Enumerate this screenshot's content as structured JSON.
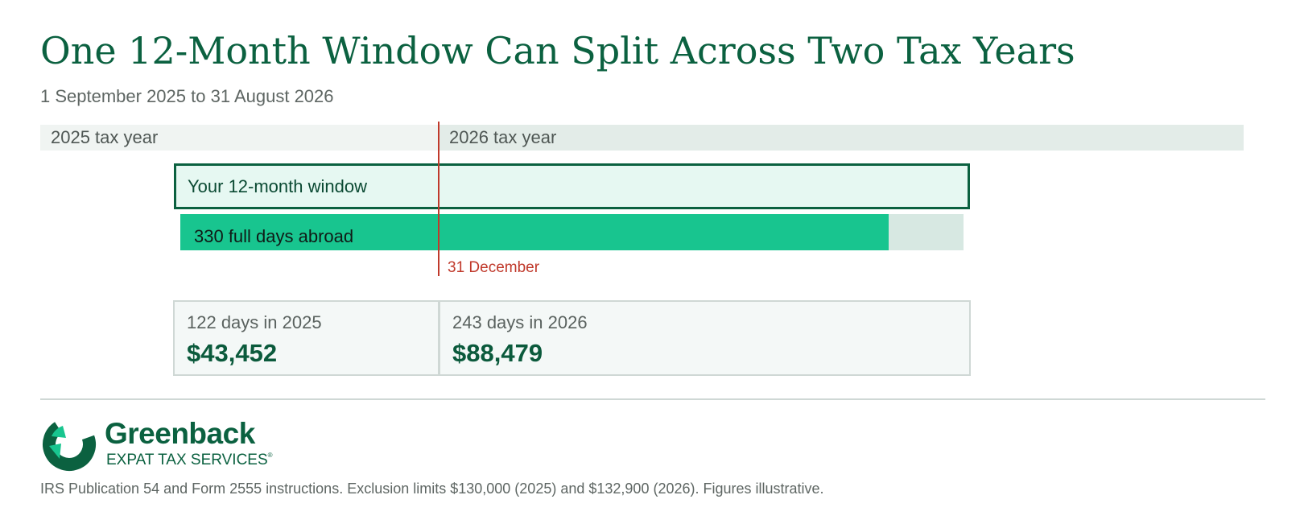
{
  "title": "One 12-Month Window Can Split Across Two Tax Years",
  "subtitle": "1 September 2025 to 31 August 2026",
  "tax_years": [
    {
      "label": "2025 tax year"
    },
    {
      "label": "2026 tax year"
    }
  ],
  "window": {
    "label": "Your 12-month window"
  },
  "abroad": {
    "label": "330 full days abroad",
    "days": 330,
    "total_days": 365
  },
  "divider": {
    "label": "31 December"
  },
  "splits": [
    {
      "days_label": "122 days in 2025",
      "amount": "$43,452"
    },
    {
      "days_label": "243 days in 2026",
      "amount": "$88,479"
    }
  ],
  "brand": {
    "name": "Greenback",
    "sub": "EXPAT TAX SERVICES",
    "reg": "®"
  },
  "footnote": "IRS Publication 54 and Form 2555 instructions. Exclusion limits $130,000 (2025) and $132,900 (2026). Figures illustrative.",
  "colors": {
    "brand_green": "#0b6140",
    "accent_green": "#18c58f",
    "divider_red": "#c0392b"
  }
}
